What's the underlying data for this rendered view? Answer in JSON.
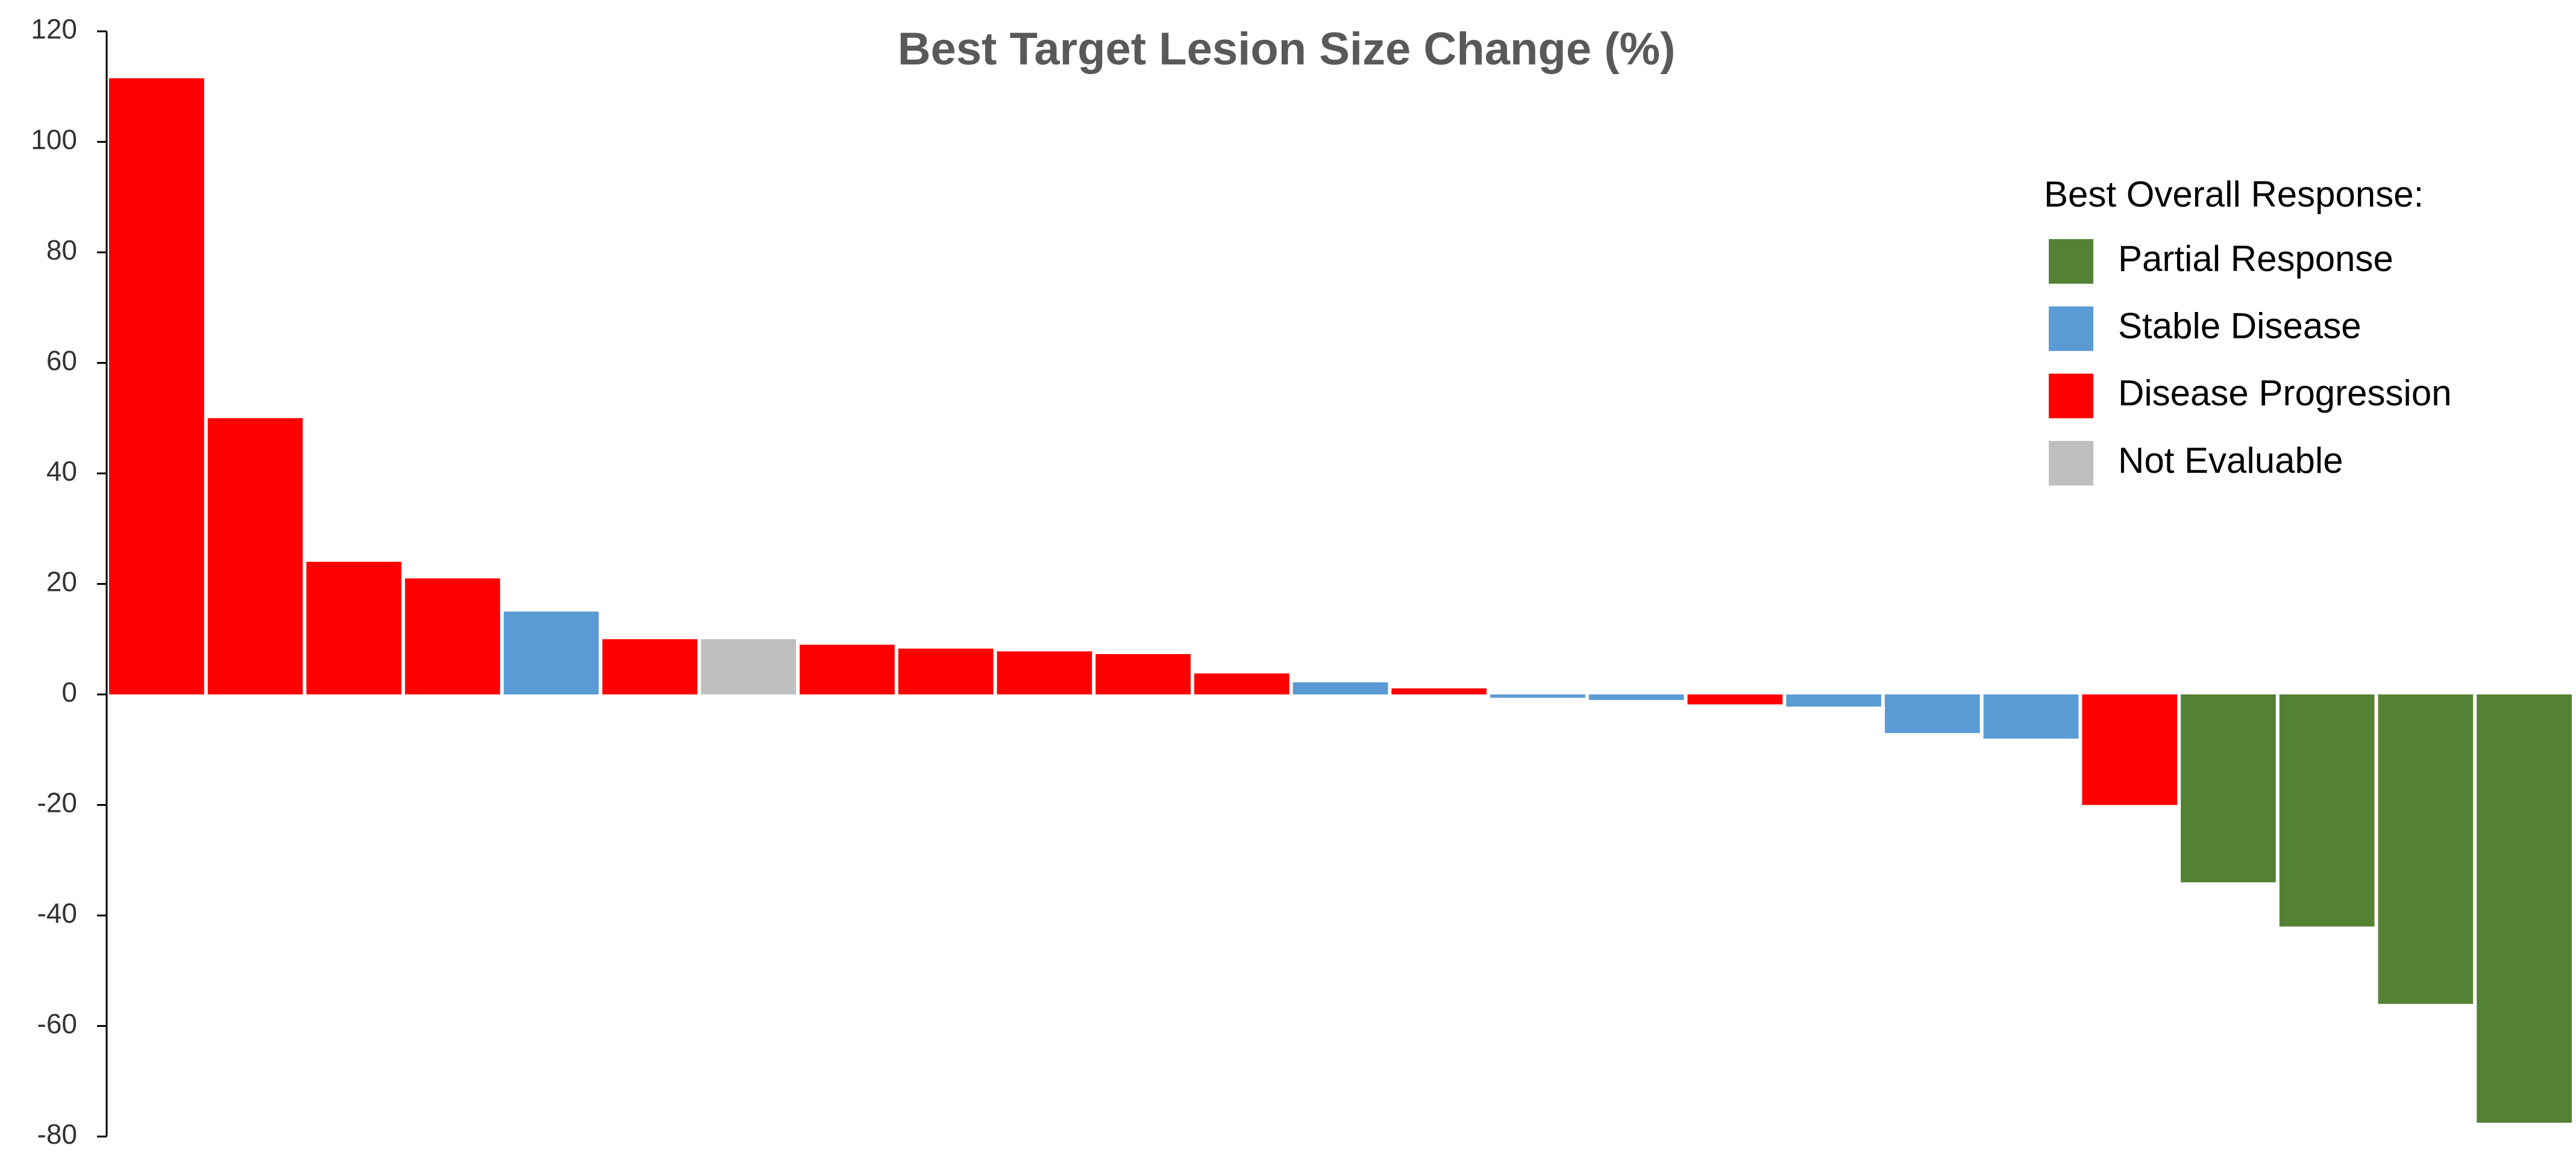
{
  "chart_data": {
    "type": "bar",
    "title": "Best Target Lesion Size Change (%)",
    "categories": [
      null,
      null,
      null,
      null,
      null,
      null,
      null,
      null,
      null,
      null,
      null,
      null,
      null,
      null,
      null,
      null,
      null,
      null,
      null,
      null,
      null,
      null,
      null,
      null,
      null
    ],
    "legend_title": "Best Overall Response:",
    "legend": "upper right",
    "series": [
      {
        "name": "Partial Response",
        "color": "#548235",
        "values": [
          null,
          null,
          null,
          null,
          null,
          null,
          null,
          null,
          null,
          null,
          null,
          null,
          null,
          null,
          null,
          null,
          null,
          null,
          null,
          null,
          null,
          -34,
          -42,
          -56,
          -77.5
        ]
      },
      {
        "name": "Stable Disease",
        "color": "#5b9bd5",
        "values": [
          null,
          null,
          null,
          null,
          15,
          null,
          null,
          null,
          null,
          null,
          null,
          null,
          2.2,
          null,
          -0.6,
          -1,
          null,
          -2.2,
          -7,
          -8,
          null,
          null,
          null,
          null,
          null
        ]
      },
      {
        "name": "Disease Progression",
        "color": "#ff0000",
        "values": [
          111.5,
          50,
          24,
          21,
          null,
          10,
          null,
          9,
          8.3,
          7.8,
          7.3,
          3.8,
          null,
          1.1,
          null,
          null,
          -1.8,
          null,
          null,
          null,
          -20,
          null,
          null,
          null,
          null
        ]
      },
      {
        "name": "Not Evaluable",
        "color": "#bfbfbf",
        "values": [
          null,
          null,
          null,
          null,
          null,
          null,
          10,
          null,
          null,
          null,
          null,
          null,
          null,
          null,
          null,
          null,
          null,
          null,
          null,
          null,
          null,
          null,
          null,
          null,
          null
        ]
      }
    ],
    "ylim": [
      -80,
      120
    ],
    "yticks": [
      -80,
      -60,
      -40,
      -20,
      0,
      20,
      40,
      60,
      80,
      100,
      120
    ],
    "grid": false
  }
}
